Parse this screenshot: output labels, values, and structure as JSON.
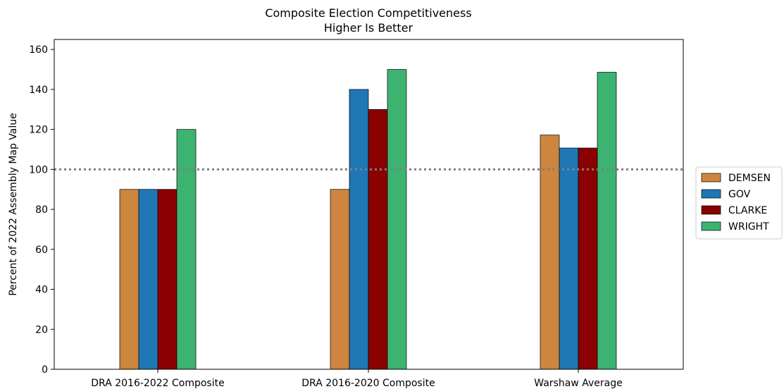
{
  "chart_data": {
    "type": "bar",
    "title": "Composite Election Competitiveness",
    "subtitle": "Higher Is Better",
    "xlabel": "",
    "ylabel": "Percent of 2022 Assembly Map Value",
    "categories": [
      "DRA 2016-2022 Composite",
      "DRA 2016-2020 Composite",
      "Warshaw Average"
    ],
    "series": [
      {
        "name": "DEMSEN",
        "color": "#CD853F",
        "values": [
          90,
          90,
          117.2
        ]
      },
      {
        "name": "GOV",
        "color": "#1F77B4",
        "values": [
          90,
          140,
          110.7
        ]
      },
      {
        "name": "CLARKE",
        "color": "#8B0000",
        "values": [
          90,
          130,
          110.7
        ]
      },
      {
        "name": "WRIGHT",
        "color": "#3CB371",
        "values": [
          120,
          150,
          148.6
        ]
      }
    ],
    "ylim": [
      0,
      165
    ],
    "yticks": [
      0,
      20,
      40,
      60,
      80,
      100,
      120,
      140,
      160
    ],
    "reference_line": {
      "y": 100,
      "style": "dotted",
      "color": "#808080"
    },
    "legend_position": "right",
    "grid": false
  }
}
